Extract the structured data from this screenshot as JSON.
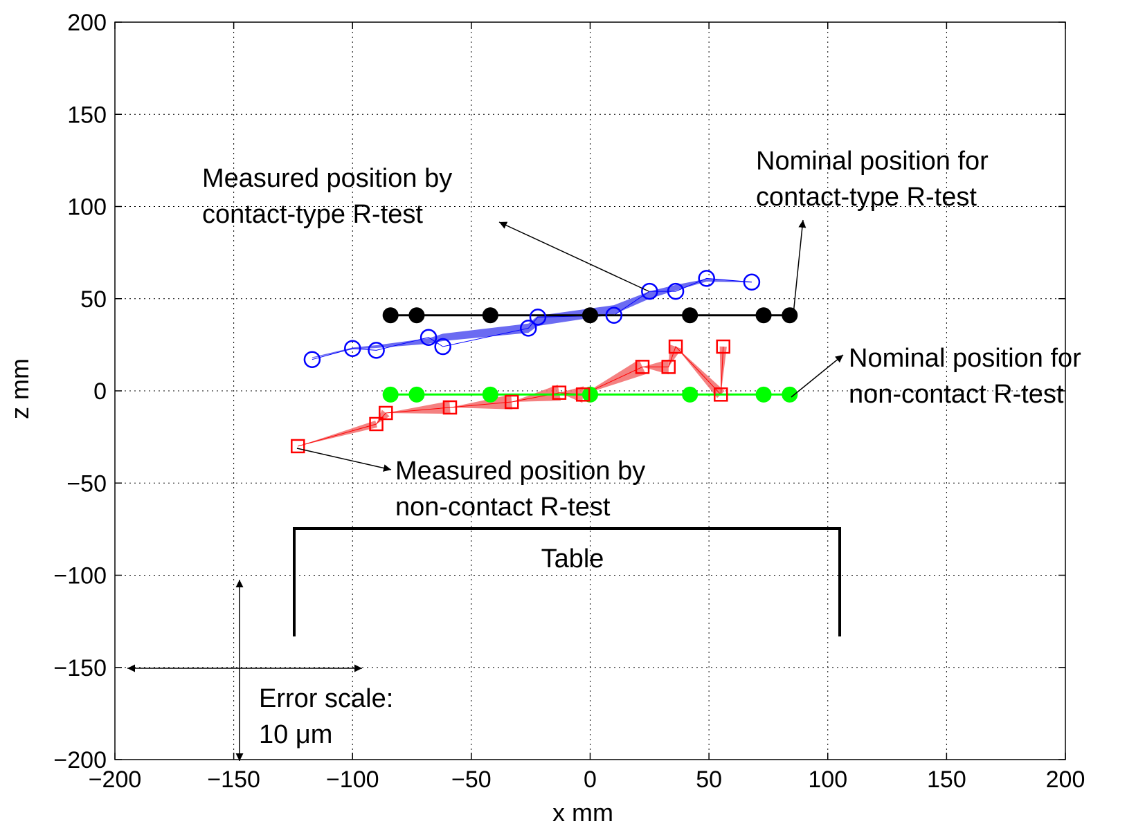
{
  "chart_data": {
    "type": "scatter",
    "xlabel": "x mm",
    "ylabel": "z mm",
    "xlim": [
      -200,
      200
    ],
    "ylim": [
      -200,
      200
    ],
    "xticks": [
      -200,
      -150,
      -100,
      -50,
      0,
      50,
      100,
      150,
      200
    ],
    "yticks": [
      -200,
      -150,
      -100,
      -50,
      0,
      50,
      100,
      150,
      200
    ],
    "x_tick_labels": [
      "−200",
      "−150",
      "−100",
      "−50",
      "0",
      "50",
      "100",
      "150",
      "200"
    ],
    "y_tick_labels": [
      "−200",
      "−150",
      "−100",
      "−50",
      "0",
      "50",
      "100",
      "150",
      "200"
    ],
    "grid": true,
    "series": [
      {
        "role": "nominal-contact",
        "color": "#000000",
        "marker": "filled-circle",
        "x": [
          -84,
          -73,
          -42,
          0,
          42,
          73,
          84
        ],
        "y": [
          41,
          41,
          41,
          41,
          41,
          41,
          41
        ]
      },
      {
        "role": "measured-contact",
        "color": "#0000ff",
        "fill_color": "#6b6bf2",
        "marker": "open-circle",
        "x": [
          -117,
          -100,
          -90,
          -68,
          -62,
          -26,
          -22,
          10,
          25,
          36,
          49,
          68
        ],
        "y": [
          17,
          23,
          22,
          29,
          24,
          34,
          40,
          41,
          54,
          54,
          61,
          59
        ],
        "band_x": [
          -117,
          -100,
          -90,
          -68,
          -62,
          -26,
          -22,
          10,
          25,
          36,
          49,
          68
        ],
        "band_y": [
          18,
          23,
          24,
          27,
          29,
          34,
          38,
          44,
          52,
          56,
          60,
          59
        ],
        "band_width": [
          0.5,
          1,
          1.5,
          3,
          4,
          5,
          5.5,
          5,
          4,
          3,
          1.5,
          0.5
        ]
      },
      {
        "role": "nominal-non-contact",
        "color": "#00ff00",
        "marker": "filled-circle",
        "x": [
          -84,
          -73,
          -42,
          0,
          42,
          73,
          84
        ],
        "y": [
          -2,
          -2,
          -2,
          -2,
          -2,
          -2,
          -2
        ]
      },
      {
        "role": "measured-non-contact",
        "color": "#ff0000",
        "fill_color": "#f26b6b",
        "marker": "open-square",
        "x": [
          -123,
          -90,
          -86,
          -59,
          -33,
          -13,
          -3,
          22,
          33,
          36,
          55,
          56
        ],
        "y": [
          -30,
          -18,
          -12,
          -9,
          -6,
          -1,
          -2,
          13,
          13,
          24,
          -2,
          24
        ]
      }
    ],
    "annotations": [
      {
        "lines": [
          "Measured position by",
          "contact-type R-test"
        ]
      },
      {
        "lines": [
          "Nominal position for",
          "contact-type R-test"
        ]
      },
      {
        "lines": [
          "Nominal position for",
          "non-contact R-test"
        ]
      },
      {
        "lines": [
          "Measured position by",
          "non-contact R-test"
        ]
      },
      {
        "lines": [
          "Table"
        ]
      },
      {
        "lines": [
          "Error scale:",
          "10 μm"
        ]
      }
    ]
  }
}
